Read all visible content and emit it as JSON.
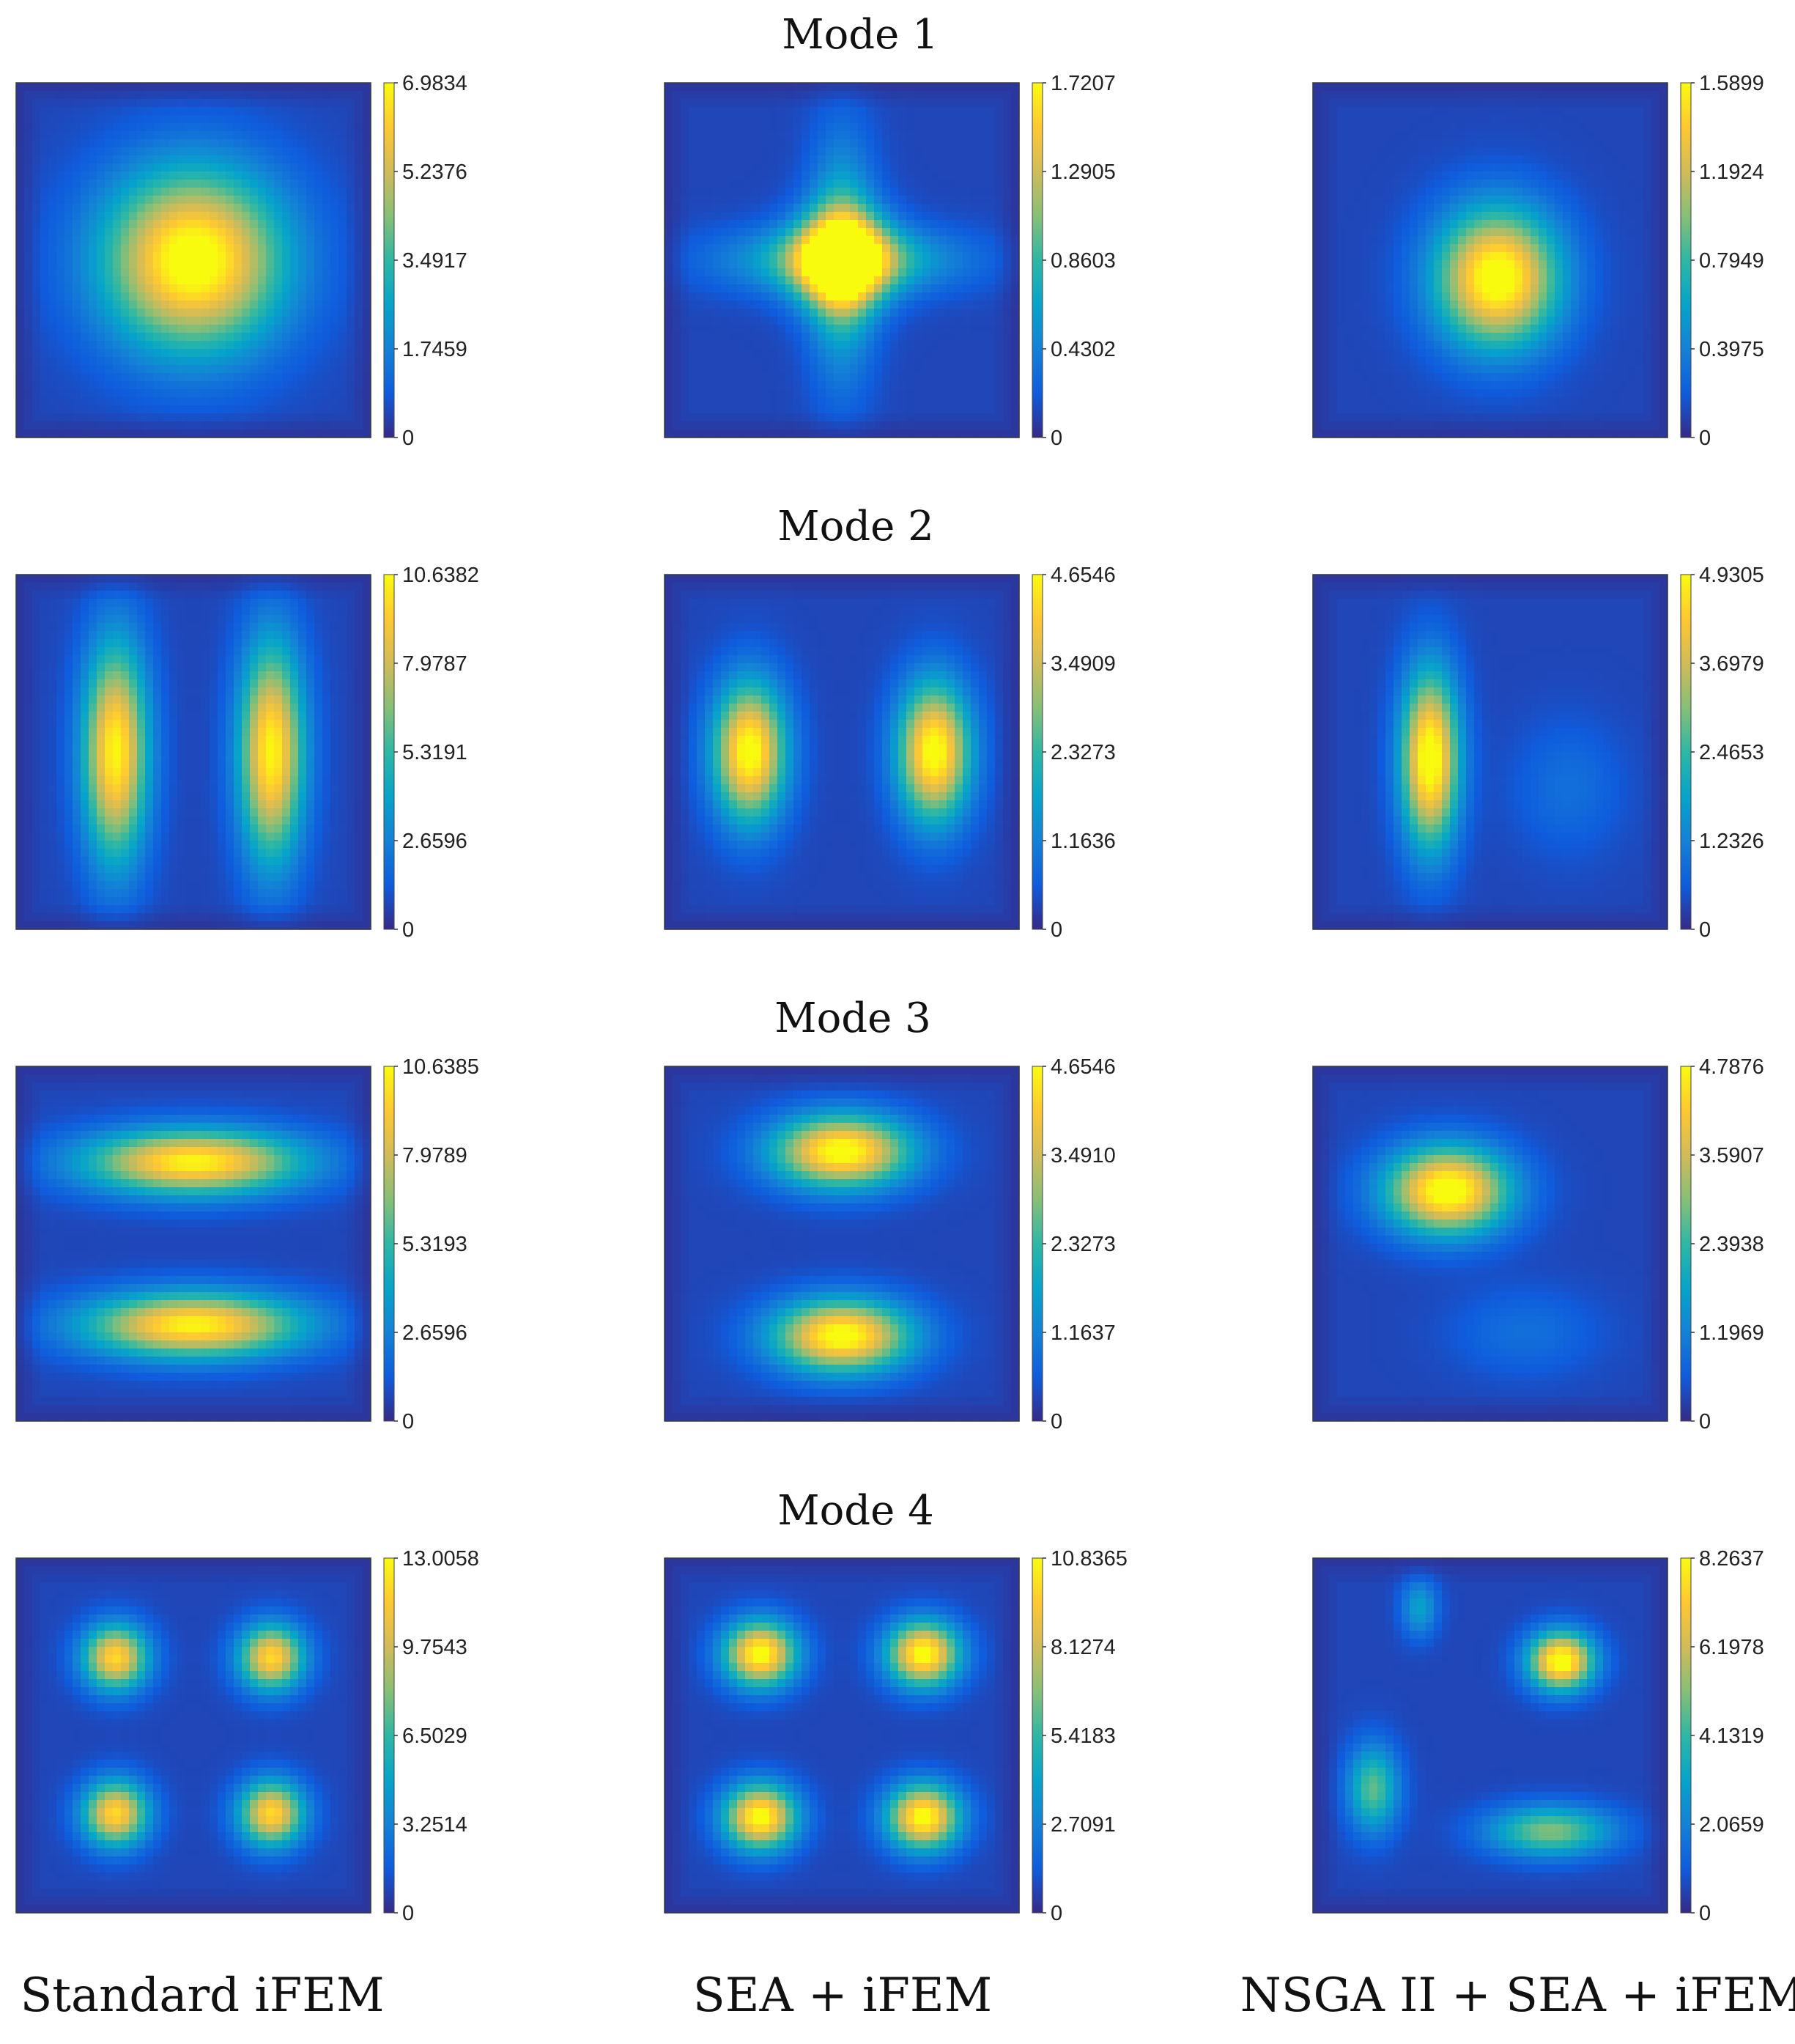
{
  "figure": {
    "mode_titles": [
      "Mode 1",
      "Mode 2",
      "Mode 3",
      "Mode 4"
    ],
    "method_labels": [
      "Standard iFEM",
      "SEA + iFEM",
      "NSGA II + SEA + iFEM"
    ]
  },
  "chart_data": [
    {
      "type": "heatmap",
      "mode": "Mode 1",
      "method": "Standard iFEM",
      "pattern": "central square bulge with ripples",
      "colormap": "parula",
      "clim": [
        0,
        6.9834
      ],
      "colorbar_ticks": [
        "0",
        "1.7459",
        "3.4917",
        "5.2376",
        "6.9834"
      ],
      "peaks": [
        {
          "x": 0.5,
          "y": 0.5,
          "sx": 0.25,
          "sy": 0.25,
          "a": 1.0
        }
      ]
    },
    {
      "type": "heatmap",
      "mode": "Mode 1",
      "method": "SEA + iFEM",
      "pattern": "central cross-shaped bulge",
      "colormap": "parula",
      "clim": [
        0,
        1.7207
      ],
      "colorbar_ticks": [
        "0",
        "0.4302",
        "0.8603",
        "1.2905",
        "1.7207"
      ],
      "peaks": [
        {
          "x": 0.5,
          "y": 0.5,
          "sx": 0.13,
          "sy": 0.13,
          "a": 0.95
        },
        {
          "x": 0.5,
          "y": 0.5,
          "sx": 0.32,
          "sy": 0.09,
          "a": 0.45
        },
        {
          "x": 0.5,
          "y": 0.5,
          "sx": 0.09,
          "sy": 0.32,
          "a": 0.45
        }
      ]
    },
    {
      "type": "heatmap",
      "mode": "Mode 1",
      "method": "NSGA II + SEA + iFEM",
      "pattern": "single off-center bulge",
      "colormap": "parula",
      "clim": [
        0,
        1.5899
      ],
      "colorbar_ticks": [
        "0",
        "0.3975",
        "0.7949",
        "1.1924",
        "1.5899"
      ],
      "peaks": [
        {
          "x": 0.52,
          "y": 0.55,
          "sx": 0.17,
          "sy": 0.19,
          "a": 1.0
        }
      ]
    },
    {
      "type": "heatmap",
      "mode": "Mode 2",
      "method": "Standard iFEM",
      "pattern": "two vertical lobes",
      "colormap": "parula",
      "clim": [
        0,
        10.6382
      ],
      "colorbar_ticks": [
        "0",
        "2.6596",
        "5.3191",
        "7.9787",
        "10.6382"
      ],
      "peaks": [
        {
          "x": 0.28,
          "y": 0.5,
          "sx": 0.09,
          "sy": 0.3,
          "a": 0.92
        },
        {
          "x": 0.72,
          "y": 0.5,
          "sx": 0.09,
          "sy": 0.3,
          "a": 0.92
        }
      ]
    },
    {
      "type": "heatmap",
      "mode": "Mode 2",
      "method": "SEA + iFEM",
      "pattern": "two vertical lobes",
      "colormap": "parula",
      "clim": [
        0,
        4.6546
      ],
      "colorbar_ticks": [
        "0",
        "1.1636",
        "2.3273",
        "3.4909",
        "4.6546"
      ],
      "peaks": [
        {
          "x": 0.24,
          "y": 0.5,
          "sx": 0.1,
          "sy": 0.19,
          "a": 0.97
        },
        {
          "x": 0.76,
          "y": 0.5,
          "sx": 0.1,
          "sy": 0.19,
          "a": 0.97
        }
      ]
    },
    {
      "type": "heatmap",
      "mode": "Mode 2",
      "method": "NSGA II + SEA + iFEM",
      "pattern": "single vertical lobe",
      "colormap": "parula",
      "clim": [
        0,
        4.9305
      ],
      "colorbar_ticks": [
        "0",
        "1.2326",
        "2.4653",
        "3.6979",
        "4.9305"
      ],
      "peaks": [
        {
          "x": 0.33,
          "y": 0.52,
          "sx": 0.08,
          "sy": 0.24,
          "a": 1.0
        },
        {
          "x": 0.72,
          "y": 0.6,
          "sx": 0.15,
          "sy": 0.18,
          "a": 0.12
        }
      ]
    },
    {
      "type": "heatmap",
      "mode": "Mode 3",
      "method": "Standard iFEM",
      "pattern": "two horizontal lobes",
      "colormap": "parula",
      "clim": [
        0,
        10.6385
      ],
      "colorbar_ticks": [
        "0",
        "2.6596",
        "5.3193",
        "7.9789",
        "10.6385"
      ],
      "peaks": [
        {
          "x": 0.5,
          "y": 0.27,
          "sx": 0.3,
          "sy": 0.09,
          "a": 0.92
        },
        {
          "x": 0.5,
          "y": 0.73,
          "sx": 0.3,
          "sy": 0.09,
          "a": 0.92
        }
      ]
    },
    {
      "type": "heatmap",
      "mode": "Mode 3",
      "method": "SEA + iFEM",
      "pattern": "two horizontal lobes",
      "colormap": "parula",
      "clim": [
        0,
        4.6546
      ],
      "colorbar_ticks": [
        "0",
        "1.1637",
        "2.3273",
        "3.4910",
        "4.6546"
      ],
      "peaks": [
        {
          "x": 0.5,
          "y": 0.24,
          "sx": 0.19,
          "sy": 0.1,
          "a": 0.97
        },
        {
          "x": 0.5,
          "y": 0.76,
          "sx": 0.19,
          "sy": 0.1,
          "a": 0.97
        }
      ]
    },
    {
      "type": "heatmap",
      "mode": "Mode 3",
      "method": "NSGA II + SEA + iFEM",
      "pattern": "single off-center lobe",
      "colormap": "parula",
      "clim": [
        0,
        4.7876
      ],
      "colorbar_ticks": [
        "0",
        "1.1969",
        "2.3938",
        "3.5907",
        "4.7876"
      ],
      "peaks": [
        {
          "x": 0.38,
          "y": 0.35,
          "sx": 0.17,
          "sy": 0.12,
          "a": 1.0
        },
        {
          "x": 0.6,
          "y": 0.75,
          "sx": 0.2,
          "sy": 0.12,
          "a": 0.12
        }
      ]
    },
    {
      "type": "heatmap",
      "mode": "Mode 4",
      "method": "Standard iFEM",
      "pattern": "four quadrant lobes",
      "colormap": "parula",
      "clim": [
        0,
        13.0058
      ],
      "colorbar_ticks": [
        "0",
        "3.2514",
        "6.5029",
        "9.7543",
        "13.0058"
      ],
      "peaks": [
        {
          "x": 0.28,
          "y": 0.28,
          "sx": 0.09,
          "sy": 0.09,
          "a": 0.85
        },
        {
          "x": 0.72,
          "y": 0.28,
          "sx": 0.09,
          "sy": 0.09,
          "a": 0.85
        },
        {
          "x": 0.28,
          "y": 0.72,
          "sx": 0.09,
          "sy": 0.09,
          "a": 0.85
        },
        {
          "x": 0.72,
          "y": 0.72,
          "sx": 0.09,
          "sy": 0.09,
          "a": 0.85
        }
      ]
    },
    {
      "type": "heatmap",
      "mode": "Mode 4",
      "method": "SEA + iFEM",
      "pattern": "four quadrant lobes",
      "colormap": "parula",
      "clim": [
        0,
        10.8365
      ],
      "colorbar_ticks": [
        "0",
        "2.7091",
        "5.4183",
        "8.1274",
        "10.8365"
      ],
      "peaks": [
        {
          "x": 0.27,
          "y": 0.27,
          "sx": 0.1,
          "sy": 0.09,
          "a": 0.96
        },
        {
          "x": 0.73,
          "y": 0.27,
          "sx": 0.1,
          "sy": 0.09,
          "a": 0.96
        },
        {
          "x": 0.27,
          "y": 0.73,
          "sx": 0.1,
          "sy": 0.09,
          "a": 0.96
        },
        {
          "x": 0.73,
          "y": 0.73,
          "sx": 0.1,
          "sy": 0.09,
          "a": 0.96
        }
      ]
    },
    {
      "type": "heatmap",
      "mode": "Mode 4",
      "method": "NSGA II + SEA + iFEM",
      "pattern": "irregular multi-lobe",
      "colormap": "parula",
      "clim": [
        0,
        8.2637
      ],
      "colorbar_ticks": [
        "0",
        "2.0659",
        "4.1319",
        "6.1978",
        "8.2637"
      ],
      "peaks": [
        {
          "x": 0.7,
          "y": 0.29,
          "sx": 0.09,
          "sy": 0.08,
          "a": 1.0
        },
        {
          "x": 0.17,
          "y": 0.65,
          "sx": 0.07,
          "sy": 0.12,
          "a": 0.5
        },
        {
          "x": 0.67,
          "y": 0.77,
          "sx": 0.17,
          "sy": 0.07,
          "a": 0.55
        },
        {
          "x": 0.3,
          "y": 0.14,
          "sx": 0.05,
          "sy": 0.08,
          "a": 0.3
        }
      ]
    }
  ]
}
